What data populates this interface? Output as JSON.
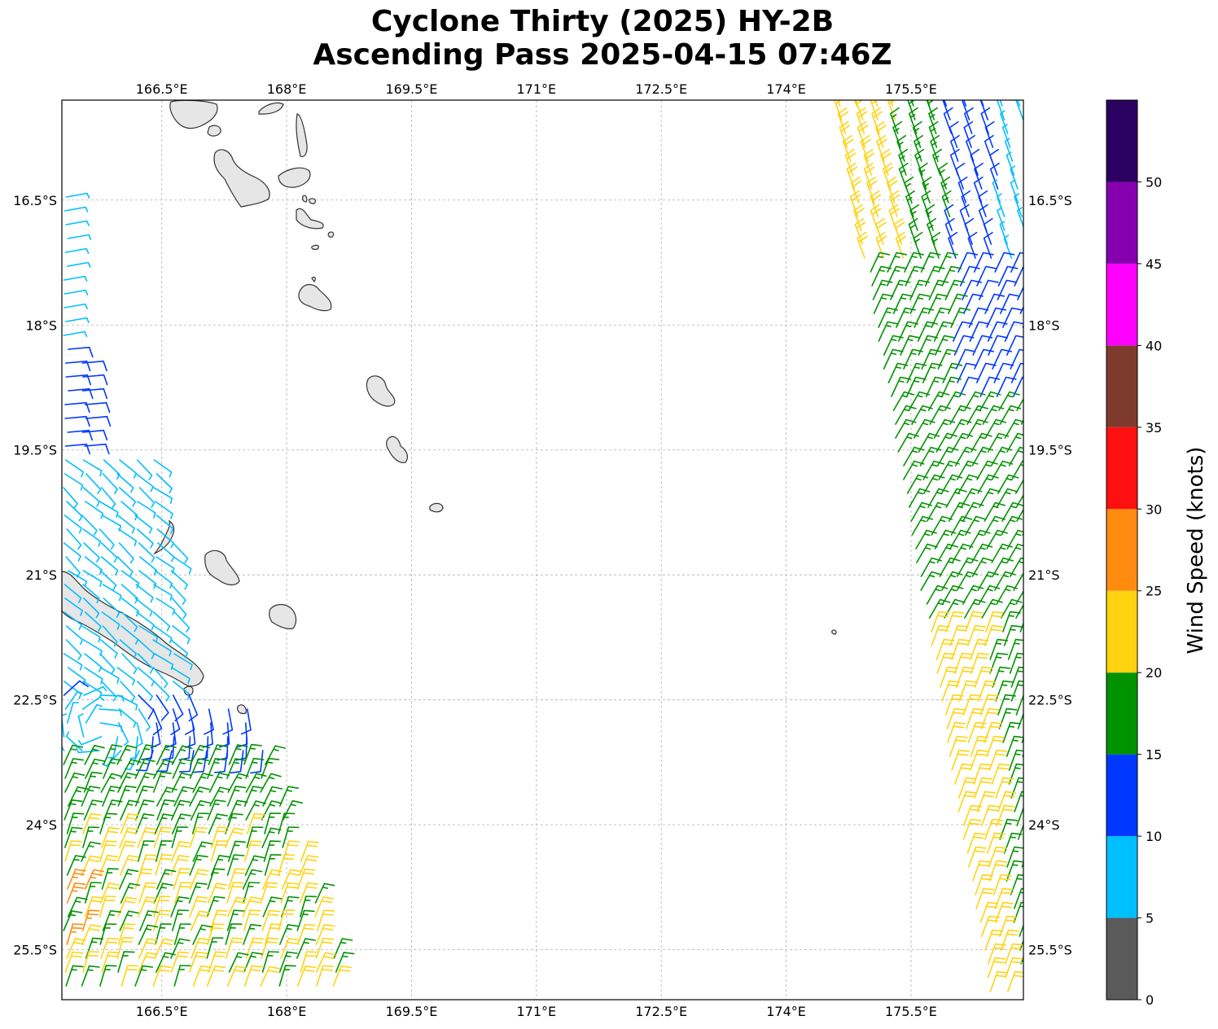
{
  "title": {
    "line1": "Cyclone Thirty (2025) HY-2B",
    "line2": "Ascending Pass 2025-04-15 07:46Z"
  },
  "map": {
    "lon_ticks": [
      "166.5°E",
      "168°E",
      "169.5°E",
      "171°E",
      "172.5°E",
      "174°E",
      "175.5°E"
    ],
    "lat_ticks": [
      "16.5°S",
      "18°S",
      "19.5°S",
      "21°S",
      "22.5°S",
      "24°S",
      "25.5°S"
    ],
    "lon_range": [
      165.3,
      176.85
    ],
    "lat_range": [
      -15.3,
      -26.1
    ],
    "gridlines": true,
    "land_color": "#e6e6e6",
    "coast_color": "#333333"
  },
  "colorbar": {
    "label": "Wind Speed (knots)",
    "ticks": [
      "0",
      "5",
      "10",
      "15",
      "20",
      "25",
      "30",
      "35",
      "40",
      "45",
      "50"
    ],
    "bins": [
      {
        "min": 0,
        "max": 5,
        "color": "#5a5a5a"
      },
      {
        "min": 5,
        "max": 10,
        "color": "#00bfff"
      },
      {
        "min": 10,
        "max": 15,
        "color": "#0038ff"
      },
      {
        "min": 15,
        "max": 20,
        "color": "#009300"
      },
      {
        "min": 20,
        "max": 25,
        "color": "#ffd310"
      },
      {
        "min": 25,
        "max": 30,
        "color": "#ff8c10"
      },
      {
        "min": 30,
        "max": 35,
        "color": "#ff1010"
      },
      {
        "min": 35,
        "max": 40,
        "color": "#7e3b2d"
      },
      {
        "min": 40,
        "max": 45,
        "color": "#ff00ff"
      },
      {
        "min": 45,
        "max": 50,
        "color": "#8600b0"
      },
      {
        "min": 50,
        "max": 55,
        "color": "#2a0060"
      }
    ]
  }
}
